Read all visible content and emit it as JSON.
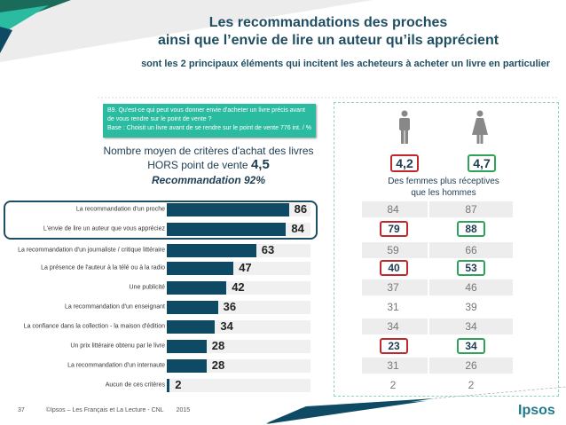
{
  "header": {
    "title_line1": "Les recommandations des proches",
    "title_line2": "ainsi que l’envie de lire un auteur qu’ils apprécient",
    "subtitle": "sont les 2 principaux éléments qui incitent les acheteurs à acheter un livre en particulier"
  },
  "question": {
    "text": "B9. Qu'est-ce qui peut vous donner envie d'acheter un livre précis avant de vous rendre sur le point de vente ?",
    "base": "Base : Choisit un livre avant de se rendre sur le point de vente 776 int. / %"
  },
  "summary": {
    "line1": "Nombre moyen de critères d'achat des livres",
    "line2": "HORS point de vente",
    "avg": "4,5",
    "reco": "Recommandation 92%"
  },
  "gender": {
    "men_avg": "4,2",
    "women_avg": "4,7",
    "note_line1": "Des femmes plus réceptives",
    "note_line2": "que les hommes",
    "men_icon": "man-icon",
    "women_icon": "woman-icon",
    "rows": [
      {
        "men": "84",
        "women": "87"
      },
      {
        "men": "79",
        "women": "88",
        "hl": true
      },
      {
        "men": "59",
        "women": "66"
      },
      {
        "men": "40",
        "women": "53",
        "hl": true
      },
      {
        "men": "37",
        "women": "46"
      },
      {
        "men": "31",
        "women": "39"
      },
      {
        "men": "34",
        "women": "34"
      },
      {
        "men": "23",
        "women": "34",
        "hl": true
      },
      {
        "men": "31",
        "women": "26"
      },
      {
        "men": "2",
        "women": "2"
      }
    ]
  },
  "colors": {
    "bar": "#0e4a63",
    "low": "#c0282d",
    "high": "#2ea45a",
    "accent": "#2bbba0"
  },
  "chart_data": {
    "type": "bar",
    "orientation": "horizontal",
    "xlim": [
      0,
      100
    ],
    "categories": [
      "La recommandation d'un proche",
      "L'envie de lire un auteur que vous appréciez",
      "La recommandation d'un journaliste / critique littéraire",
      "La présence de l'auteur à la télé ou à la radio",
      "Une publicité",
      "La recommandation d'un enseignant",
      "La confiance dans la collection - la maison d'édition",
      "Un prix littéraire obtenu par le livre",
      "La recommandation d'un internaute",
      "Aucun de ces critères"
    ],
    "values": [
      86,
      84,
      63,
      47,
      42,
      36,
      34,
      28,
      28,
      2
    ]
  },
  "footer": {
    "page": "37",
    "source": "©Ipsos – Les Français et La Lecture - CNL",
    "year": "2015",
    "logo": "Ipsos"
  }
}
